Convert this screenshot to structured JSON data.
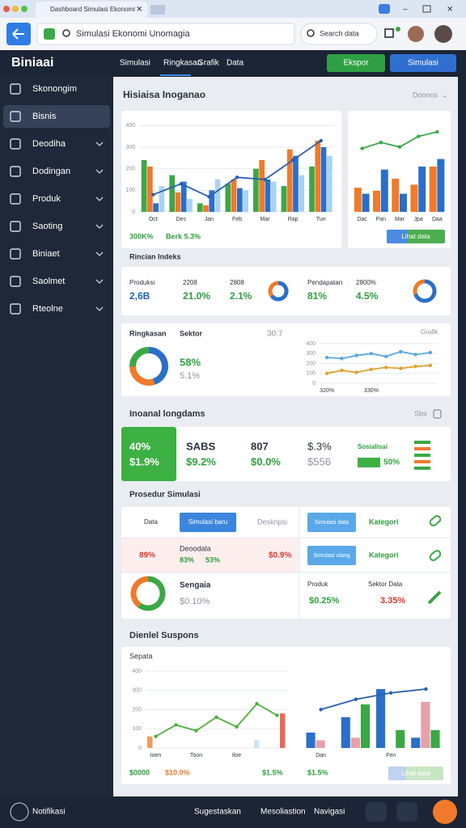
{
  "browser": {
    "tab_title": "Dashboard Simulasi Ekonomi",
    "address": "Simulasi Ekonomi Unomagia",
    "search": "Search data"
  },
  "app": {
    "brand": "Biniaai",
    "tabs": [
      "Simulasi",
      "Ringkasan",
      "Grafik",
      "Data"
    ],
    "export_button": "Ekspor",
    "simulate_button": "Simulasi"
  },
  "sidebar": [
    "Skonongim",
    "Bisnis",
    "Deodiha",
    "Dodingan",
    "Produk",
    "Saoting",
    "Biniaet",
    "Saolmet",
    "Rteolne"
  ],
  "overview": {
    "title": "Hisiaisa Inoganao",
    "filter": "Donnos",
    "main_chart": {
      "type": "bar",
      "ylim": [
        0,
        420
      ],
      "yticks": [
        0,
        100,
        200,
        300,
        400
      ],
      "categories": [
        "Oct",
        "Dec",
        "Jan",
        "Feb",
        "Mar",
        "Rap",
        "Tun"
      ],
      "series": [
        {
          "type": "bar",
          "color": "#3aa845",
          "values": [
            240,
            170,
            40,
            130,
            200,
            120,
            210
          ]
        },
        {
          "type": "bar",
          "color": "#f07a2a",
          "values": [
            210,
            90,
            30,
            150,
            240,
            290,
            330
          ]
        },
        {
          "type": "bar",
          "color": "#2a6fc9",
          "values": [
            40,
            140,
            100,
            110,
            150,
            260,
            300
          ]
        },
        {
          "type": "bar",
          "color": "#a9d3ef",
          "values": [
            120,
            60,
            150,
            100,
            140,
            170,
            260
          ]
        },
        {
          "type": "line",
          "color": "#2a5fb0",
          "values": [
            80,
            130,
            70,
            160,
            150,
            240,
            330
          ]
        }
      ]
    },
    "main_footer": [
      "300K%",
      "Berk 5.3%"
    ],
    "side_chart": {
      "type": "bar",
      "ylim": [
        0,
        300
      ],
      "categories": [
        "Dac",
        "Pan",
        "Mar",
        "Jpa",
        "Daa"
      ],
      "series": [
        {
          "type": "bar",
          "color": "#f07a2a",
          "values": [
            80,
            70,
            110,
            90,
            150
          ]
        },
        {
          "type": "bar",
          "color": "#2a6fc9",
          "values": [
            60,
            140,
            60,
            150,
            175
          ]
        },
        {
          "type": "line",
          "color": "#3aa845",
          "values": [
            210,
            230,
            215,
            250,
            265
          ]
        }
      ]
    },
    "side_button": "Lihat data"
  },
  "index": {
    "title": "Rincian Indeks",
    "kpis": [
      {
        "label": "Produksi",
        "value": "2,6B",
        "color": "#1e5fb8"
      },
      {
        "label": "2208",
        "value": "21.0%",
        "color": "#2e9e3e"
      },
      {
        "label": "2808",
        "value": "2.1%",
        "color": "#2e9e3e"
      },
      {
        "label": "Pendapatan",
        "value": "81%",
        "color": "#2e9e3e"
      },
      {
        "label": "2800%",
        "value": "4.5%",
        "color": "#2e9e3e"
      }
    ],
    "donut_a": {
      "values": [
        65,
        35
      ],
      "colors": [
        "#2a6fc9",
        "#f07a2a"
      ]
    },
    "donut_b": {
      "values": [
        70,
        30
      ],
      "colors": [
        "#2a6fc9",
        "#f07a2a"
      ]
    }
  },
  "summary": {
    "label_a": "Ringkasan",
    "label_b": "Sektor",
    "time": "30:7",
    "value": "58%",
    "sub": "5.1%",
    "chart_label": "Grafik",
    "donut": {
      "values": [
        45,
        30,
        25
      ],
      "colors": [
        "#2a6fc9",
        "#f07a2a",
        "#3aa845"
      ]
    },
    "line_chart": {
      "type": "line",
      "ylim": [
        0,
        400
      ],
      "yticks": [
        0,
        100,
        200,
        300,
        400
      ],
      "categories": [
        "320%",
        null,
        null,
        "330%",
        null,
        null,
        null,
        null
      ],
      "series": [
        {
          "type": "line",
          "color": "#5aa8e0",
          "values": [
            260,
            250,
            280,
            300,
            270,
            320,
            290,
            310
          ]
        },
        {
          "type": "line",
          "color": "#e0a030",
          "values": [
            100,
            130,
            110,
            140,
            160,
            150,
            170,
            180
          ]
        }
      ]
    }
  },
  "metrics": {
    "title": "Inoanal longdams",
    "action": "Sbs",
    "items": [
      {
        "top": "40%",
        "bottom": "$1.9%"
      },
      {
        "top": "SABS",
        "bottom": "$9.2%"
      },
      {
        "top": "807",
        "bottom": "$0.0%"
      },
      {
        "top": "$.3%",
        "bottom": "$556"
      },
      {
        "top": "Sosialisai",
        "bottom": "50%"
      }
    ]
  },
  "procedure": {
    "title": "Prosedur Simulasi",
    "row1": {
      "label": "Data",
      "button": "Simulasi baru",
      "note": "Deskripsi",
      "button_b": "Simulasi data",
      "category": "Kategori"
    },
    "row2": {
      "value": "89%",
      "label": "Deoodala",
      "a": "83%",
      "b": "53%",
      "total": "$0.9%",
      "button_b": "Simulasi ulang",
      "category": "Kategori"
    },
    "row3": {
      "label": "Sengaia",
      "value": "$0.10%",
      "product": "Produk",
      "sector": "Sektor Data",
      "a": "$0.25%",
      "b": "3.35%",
      "donut": {
        "values": [
          60,
          40
        ],
        "colors": [
          "#3aa845",
          "#f07a2a"
        ]
      }
    }
  },
  "detail": {
    "title": "Dienlel Suspons",
    "subtitle": "Sepata",
    "left_chart": {
      "type": "line",
      "ylim": [
        0,
        400
      ],
      "yticks": [
        0,
        100,
        200,
        300,
        400
      ],
      "categories": [
        "Ioen",
        null,
        "Toon",
        null,
        "Iloe",
        null,
        null
      ],
      "series": [
        {
          "type": "bar",
          "color": "#f59a5c",
          "values": [
            60,
            null,
            null,
            null,
            null,
            null,
            null
          ]
        },
        {
          "type": "bar",
          "color": "#c6e4f5",
          "values": [
            null,
            null,
            null,
            null,
            null,
            40,
            null
          ]
        },
        {
          "type": "bar",
          "color": "#e86a5a",
          "values": [
            null,
            null,
            null,
            null,
            null,
            null,
            180
          ]
        },
        {
          "type": "line",
          "color": "#4caf3c",
          "values": [
            60,
            120,
            90,
            160,
            110,
            230,
            170
          ]
        }
      ]
    },
    "right_chart": {
      "type": "bar",
      "ylim": [
        0,
        300
      ],
      "categories": [
        "Dan",
        null,
        "Fen",
        null
      ],
      "series": [
        {
          "type": "bar",
          "color": "#2a6fc9",
          "values": [
            60,
            120,
            230,
            40
          ]
        },
        {
          "type": "bar",
          "color": "#e8a0a8",
          "values": [
            30,
            40,
            null,
            180
          ]
        },
        {
          "type": "bar",
          "color": "#3aa845",
          "values": [
            null,
            170,
            70,
            70
          ]
        },
        {
          "type": "line",
          "color": "#2a5fb0",
          "values": [
            150,
            190,
            215,
            230
          ]
        }
      ]
    },
    "footer": [
      "$0000",
      "$10.0%",
      "$1.5%",
      "$1.5%"
    ],
    "button": "Lihat data"
  },
  "footer": {
    "notifications": "Notifikasi",
    "links": [
      "Sugestaskan",
      "Mesoliastion",
      "Navigasi"
    ]
  }
}
